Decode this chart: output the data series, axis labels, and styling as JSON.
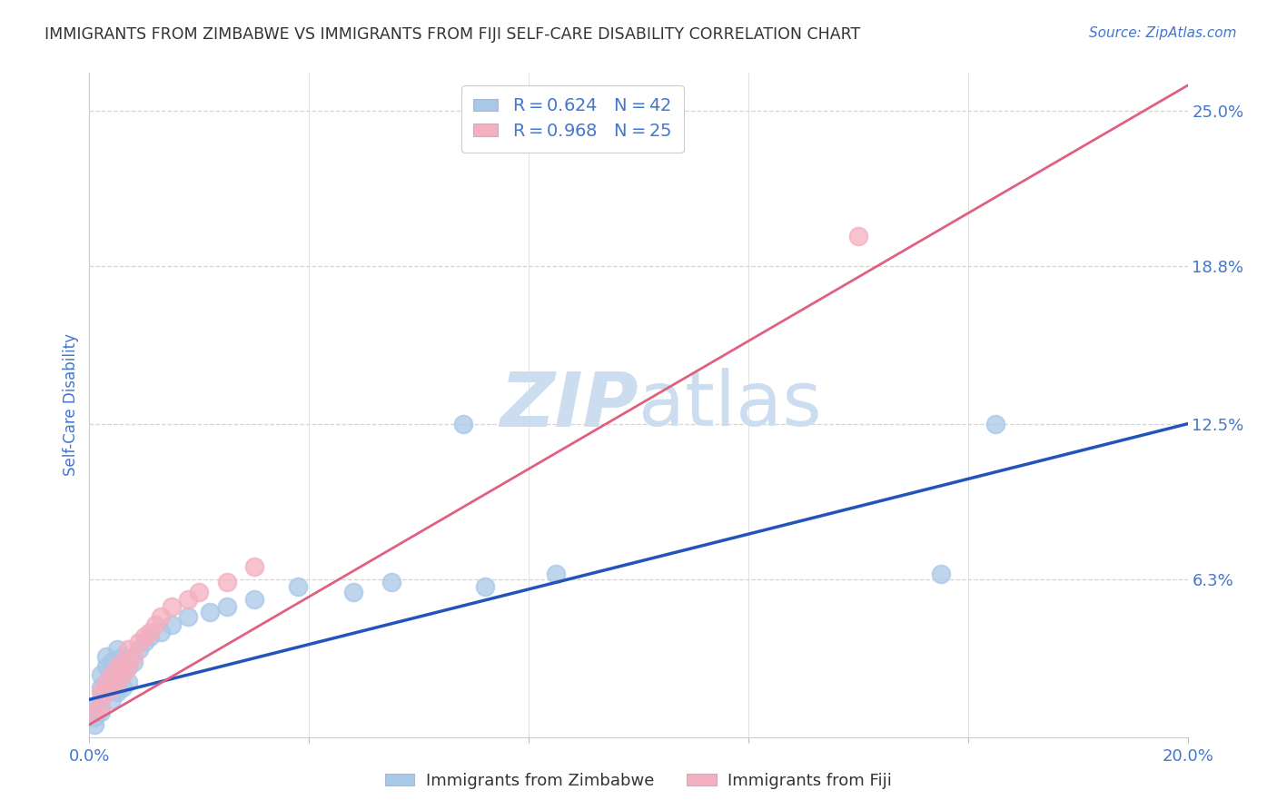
{
  "title": "IMMIGRANTS FROM ZIMBABWE VS IMMIGRANTS FROM FIJI SELF-CARE DISABILITY CORRELATION CHART",
  "source": "Source: ZipAtlas.com",
  "ylabel_label": "Self-Care Disability",
  "x_min": 0.0,
  "x_max": 0.2,
  "y_min": 0.0,
  "y_max": 0.265,
  "color_zimbabwe": "#a8c8e8",
  "color_fiji": "#f4afc0",
  "line_color_zimbabwe": "#2255bb",
  "line_color_fiji": "#e06080",
  "watermark_color": "#cdddf0",
  "background_color": "#ffffff",
  "grid_color": "#d5d5d5",
  "title_color": "#333333",
  "axis_label_color": "#4477cc",
  "legend_text_color": "#4477cc",
  "zimbabwe_x": [
    0.001,
    0.001,
    0.001,
    0.002,
    0.002,
    0.002,
    0.002,
    0.003,
    0.003,
    0.003,
    0.003,
    0.004,
    0.004,
    0.004,
    0.004,
    0.005,
    0.005,
    0.005,
    0.005,
    0.006,
    0.006,
    0.006,
    0.007,
    0.007,
    0.008,
    0.009,
    0.01,
    0.011,
    0.013,
    0.015,
    0.018,
    0.022,
    0.025,
    0.03,
    0.038,
    0.048,
    0.055,
    0.068,
    0.072,
    0.085,
    0.155,
    0.165
  ],
  "zimbabwe_y": [
    0.005,
    0.008,
    0.012,
    0.01,
    0.015,
    0.02,
    0.025,
    0.018,
    0.022,
    0.028,
    0.032,
    0.015,
    0.02,
    0.025,
    0.03,
    0.018,
    0.022,
    0.028,
    0.035,
    0.02,
    0.025,
    0.032,
    0.022,
    0.028,
    0.03,
    0.035,
    0.038,
    0.04,
    0.042,
    0.045,
    0.048,
    0.05,
    0.052,
    0.055,
    0.06,
    0.058,
    0.062,
    0.125,
    0.06,
    0.065,
    0.065,
    0.125
  ],
  "fiji_x": [
    0.001,
    0.002,
    0.002,
    0.003,
    0.003,
    0.004,
    0.004,
    0.005,
    0.005,
    0.006,
    0.006,
    0.007,
    0.007,
    0.008,
    0.009,
    0.01,
    0.011,
    0.012,
    0.013,
    0.015,
    0.018,
    0.02,
    0.025,
    0.03,
    0.14
  ],
  "fiji_y": [
    0.01,
    0.012,
    0.018,
    0.018,
    0.022,
    0.02,
    0.025,
    0.022,
    0.028,
    0.025,
    0.03,
    0.028,
    0.035,
    0.032,
    0.038,
    0.04,
    0.042,
    0.045,
    0.048,
    0.052,
    0.055,
    0.058,
    0.062,
    0.068,
    0.2
  ],
  "blue_line_x0": 0.0,
  "blue_line_y0": 0.015,
  "blue_line_x1": 0.2,
  "blue_line_y1": 0.125,
  "pink_line_x0": 0.0,
  "pink_line_y0": 0.005,
  "pink_line_x1": 0.2,
  "pink_line_y1": 0.26
}
